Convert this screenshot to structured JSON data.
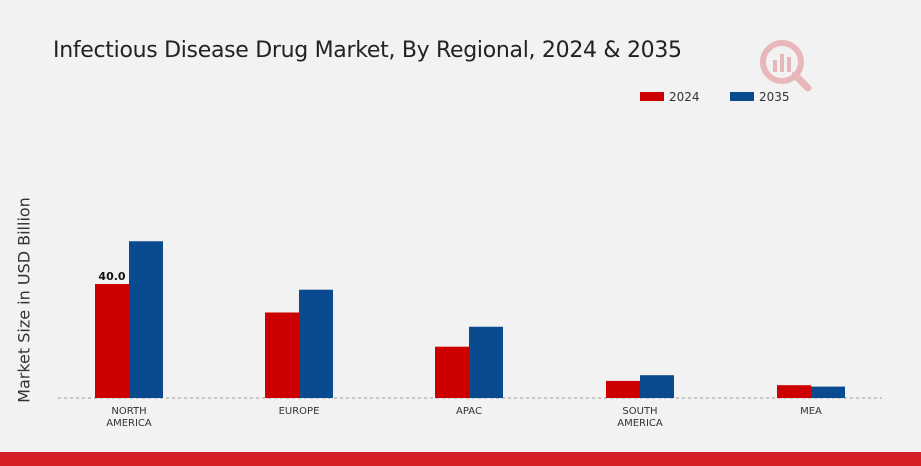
{
  "chart_data": {
    "type": "bar",
    "title": "Infectious Disease Drug Market, By Regional, 2024 & 2035",
    "xlabel": "",
    "ylabel": "Market Size in USD Billion",
    "categories": [
      "NORTH\nAMERICA",
      "EUROPE",
      "APAC",
      "SOUTH\nAMERICA",
      "MEA"
    ],
    "series": [
      {
        "name": "2024",
        "color": "#cc0000",
        "values": [
          40.0,
          30.0,
          18.0,
          6.0,
          4.5
        ]
      },
      {
        "name": "2035",
        "color": "#0a4a8f",
        "values": [
          55.0,
          38.0,
          25.0,
          8.0,
          4.0
        ]
      }
    ],
    "data_labels": [
      {
        "series": "2024",
        "category_index": 0,
        "text": "40.0"
      }
    ],
    "ylim": [
      0,
      80
    ],
    "grid": false,
    "legend": "top-right",
    "baseline_style": "dashed"
  }
}
